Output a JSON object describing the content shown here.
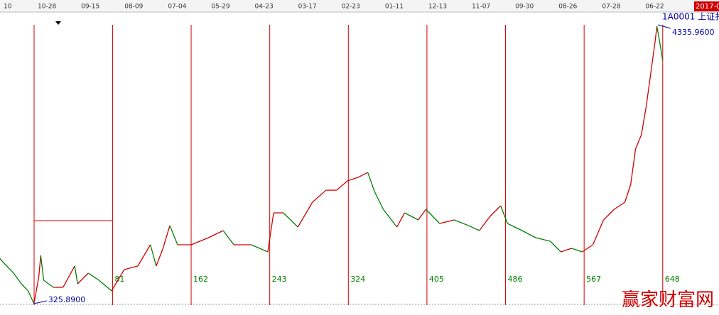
{
  "chart_data": {
    "type": "line",
    "top_axis": [
      "10",
      "10-28",
      "09-15",
      "08-09",
      "07-04",
      "05-29",
      "04-23",
      "03-17",
      "02-23",
      "01-11",
      "12-13",
      "11-07",
      "09-30",
      "08-26",
      "07-28",
      "06-22"
    ],
    "badge": "2017-0",
    "symbol": "1A0001 上证扌",
    "watermark": "赢家财富网",
    "low": {
      "x": 0,
      "value": 325.89,
      "label": "325.8900"
    },
    "high": {
      "x": 643,
      "value": 4335.96,
      "label": "4335.9600"
    },
    "xlim": [
      -35,
      706
    ],
    "ylim": [
      163,
      4509
    ],
    "xticks": [
      81,
      162,
      243,
      324,
      405,
      486,
      567,
      648
    ],
    "up_color": "#d00000",
    "down_color": "#008000",
    "tick_color": "#008000",
    "grid_color": "#d00000",
    "x": [
      -35,
      -28,
      -21,
      -13,
      -6,
      0,
      5,
      7,
      10,
      20,
      30,
      42,
      45,
      56,
      67,
      80,
      93,
      107,
      120,
      126,
      133,
      140,
      148,
      162,
      180,
      195,
      206,
      224,
      241,
      247,
      257,
      272,
      287,
      301,
      312,
      323,
      334,
      344,
      351,
      360,
      374,
      382,
      396,
      404,
      418,
      433,
      448,
      459,
      470,
      481,
      488,
      503,
      517,
      532,
      543,
      554,
      565,
      576,
      587,
      598,
      609,
      615,
      620,
      626,
      631,
      635,
      640,
      642,
      645,
      648
    ],
    "values": [
      969,
      867,
      765,
      612,
      510,
      325.89,
      714,
      1020,
      663,
      561,
      561,
      867,
      612,
      765,
      663,
      510,
      816,
      867,
      1173,
      867,
      1122,
      1448,
      1173,
      1173,
      1275,
      1377,
      1173,
      1173,
      1071,
      1632,
      1632,
      1428,
      1785,
      1958,
      1958,
      2091,
      2142,
      2213,
      1938,
      1683,
      1428,
      1632,
      1530,
      1683,
      1479,
      1530,
      1448,
      1377,
      1581,
      1734,
      1479,
      1377,
      1275,
      1224,
      1071,
      1122,
      1071,
      1173,
      1530,
      1683,
      1785,
      2040,
      2550,
      2754,
      3162,
      3570,
      4080,
      4314,
      4080,
      3825
    ]
  }
}
